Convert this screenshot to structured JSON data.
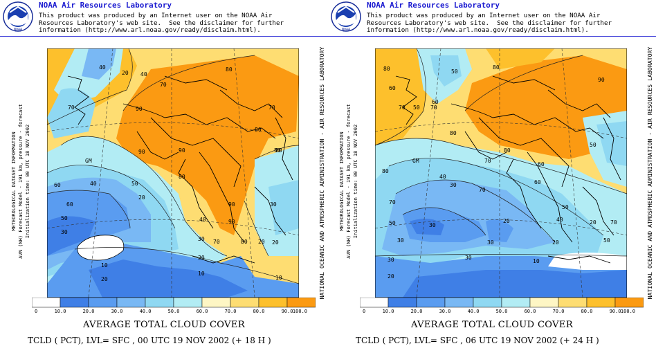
{
  "header": {
    "org": "NOAA Air Resources Laboratory",
    "disclaimer": [
      "This product was produced by an Internet user on the NOAA Air",
      "Resources Laboratory's web site.  See the disclaimer for further",
      "information (http://www.arl.noaa.gov/ready/disclaim.html)."
    ],
    "logo_text": "NOAA"
  },
  "side_label": "NATIONAL OCEANIC AND ATMOSPHERIC ADMINISTRATION - AIR RESOURCES LABORATORY",
  "meta_lines": [
    "METEOROLOGICAL DATASET INFORMATION",
    "AVN (NH) Forecast Model - 191 km, pressure - forecast",
    "Initialization time: 00 UTC 18 NOV 2002"
  ],
  "colorbar": {
    "ticks": [
      "0",
      "10.0",
      "20.0",
      "30.0",
      "40.0",
      "50.0",
      "60.0",
      "70.0",
      "80.0",
      "90.0",
      "100.0"
    ],
    "colors": [
      "#ffffff",
      "#3f7fe6",
      "#5a9cf0",
      "#79b8f4",
      "#8fd8f2",
      "#b2ecf4",
      "#fef6c4",
      "#fedd72",
      "#fdc02c",
      "#fb9a12"
    ]
  },
  "chart_title": "AVERAGE TOTAL CLOUD COVER",
  "panels": [
    {
      "caption": "TCLD ( PCT),  LVL= SFC , 00 UTC 19 NOV 2002 (+ 18 H )",
      "map_labels": [
        {
          "t": "40"
        },
        {
          "t": "20"
        },
        {
          "t": "40"
        },
        {
          "t": "70"
        },
        {
          "t": "80"
        },
        {
          "t": "70"
        },
        {
          "t": "90"
        },
        {
          "t": "90"
        },
        {
          "t": "90"
        },
        {
          "t": "80"
        },
        {
          "t": "70"
        },
        {
          "t": "GM"
        },
        {
          "t": "60"
        },
        {
          "t": "80"
        },
        {
          "t": "40"
        },
        {
          "t": "50"
        },
        {
          "t": "90"
        },
        {
          "t": "50"
        },
        {
          "t": "60"
        },
        {
          "t": "50"
        },
        {
          "t": "30"
        },
        {
          "t": "20"
        },
        {
          "t": "10"
        },
        {
          "t": "20"
        },
        {
          "t": "10"
        },
        {
          "t": "30"
        },
        {
          "t": "30"
        },
        {
          "t": "20"
        },
        {
          "t": "10"
        },
        {
          "t": "80"
        },
        {
          "t": "70"
        },
        {
          "t": "90"
        },
        {
          "t": "40"
        },
        {
          "t": "20"
        },
        {
          "t": "30"
        },
        {
          "t": "80"
        }
      ]
    },
    {
      "caption": "TCLD ( PCT),  LVL= SFC , 06 UTC 19 NOV 2002 (+ 24 H )",
      "map_labels": [
        {
          "t": "80"
        },
        {
          "t": "60"
        },
        {
          "t": "60"
        },
        {
          "t": "70"
        },
        {
          "t": "50"
        },
        {
          "t": "70"
        },
        {
          "t": "80"
        },
        {
          "t": "90"
        },
        {
          "t": "80"
        },
        {
          "t": "80"
        },
        {
          "t": "GM"
        },
        {
          "t": "50"
        },
        {
          "t": "70"
        },
        {
          "t": "60"
        },
        {
          "t": "70"
        },
        {
          "t": "50"
        },
        {
          "t": "60"
        },
        {
          "t": "40"
        },
        {
          "t": "30"
        },
        {
          "t": "70"
        },
        {
          "t": "50"
        },
        {
          "t": "30"
        },
        {
          "t": "20"
        },
        {
          "t": "30"
        },
        {
          "t": "30"
        },
        {
          "t": "20"
        },
        {
          "t": "10"
        },
        {
          "t": "40"
        },
        {
          "t": "20"
        },
        {
          "t": "50"
        },
        {
          "t": "30"
        },
        {
          "t": "20"
        },
        {
          "t": "70"
        },
        {
          "t": "30"
        },
        {
          "t": "50"
        },
        {
          "t": "80"
        }
      ]
    }
  ]
}
